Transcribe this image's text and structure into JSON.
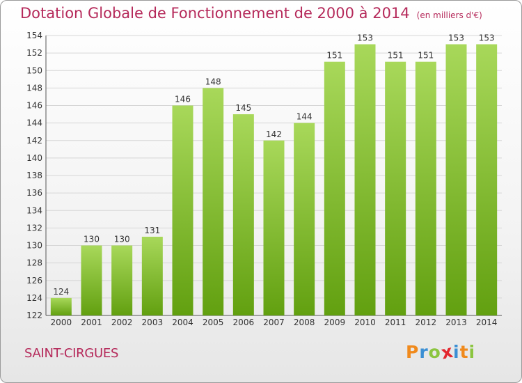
{
  "header": {
    "title": "Dotation Globale de Fonctionnement de 2000 à 2014",
    "unit": "(en milliers d'€)"
  },
  "footer": {
    "commune": "SAINT-CIRGUES",
    "logo": {
      "letters": [
        "P",
        "r",
        "o",
        "x",
        "i",
        "t",
        "i"
      ]
    }
  },
  "colors": {
    "title": "#b5295a",
    "bar_light": "#a8d85a",
    "bar_dark": "#62a010",
    "logo_letters": [
      "#f08a1c",
      "#3b8fd4",
      "#8bc53f",
      "#e3262e",
      "#3b8fd4",
      "#f08a1c",
      "#8bc53f"
    ]
  },
  "chart_data": {
    "type": "bar",
    "title": "Dotation Globale de Fonctionnement de 2000 à 2014",
    "subtitle": "(en milliers d'€)",
    "xlabel": "",
    "ylabel": "",
    "categories": [
      "2000",
      "2001",
      "2002",
      "2003",
      "2004",
      "2005",
      "2006",
      "2007",
      "2008",
      "2009",
      "2010",
      "2011",
      "2012",
      "2013",
      "2014"
    ],
    "values": [
      124,
      130,
      130,
      131,
      146,
      148,
      145,
      142,
      144,
      151,
      153,
      151,
      151,
      153,
      153
    ],
    "ylim": [
      122,
      154
    ],
    "yticks": [
      122,
      124,
      126,
      128,
      130,
      132,
      134,
      136,
      138,
      140,
      142,
      144,
      146,
      148,
      150,
      152,
      154
    ],
    "grid": true
  }
}
